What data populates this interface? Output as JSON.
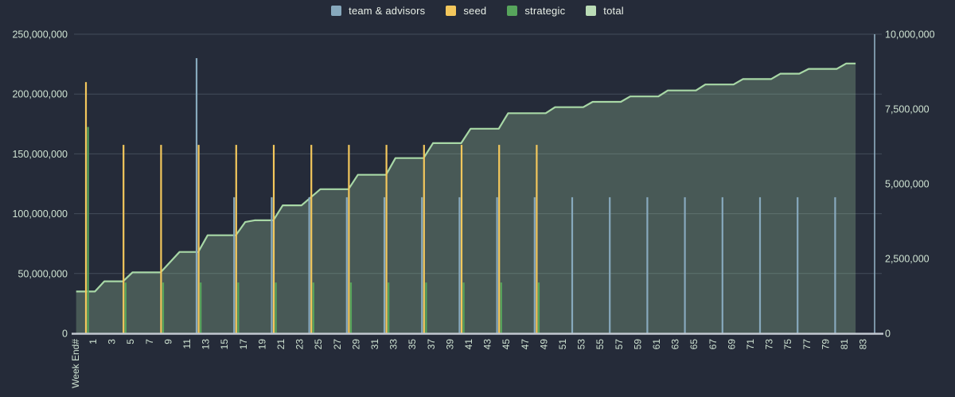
{
  "legend": {
    "items": [
      {
        "label": "team & advisors",
        "color": "#87a9bd"
      },
      {
        "label": "seed",
        "color": "#f3c75c"
      },
      {
        "label": "strategic",
        "color": "#57a55c"
      },
      {
        "label": "total",
        "color": "#badcb6"
      }
    ]
  },
  "colors": {
    "background": "#252b39",
    "gridline": "#444d5a",
    "baseline": "#c2c8d0",
    "right_axis_line": "#8fafc2",
    "axis_text": "#cfe3d2",
    "total_line": "#a8d8a6",
    "total_fill": "rgba(168,216,166,0.27)"
  },
  "chart_data": {
    "type": "combo",
    "x_axis": {
      "title": "Week End#",
      "tick_labels": [
        1,
        3,
        5,
        7,
        9,
        11,
        13,
        15,
        17,
        19,
        21,
        23,
        25,
        27,
        29,
        31,
        33,
        35,
        37,
        39,
        41,
        43,
        45,
        47,
        49,
        51,
        53,
        55,
        57,
        59,
        61,
        63,
        65,
        67,
        69,
        71,
        73,
        75,
        77,
        79,
        81,
        83
      ],
      "min_week": 0,
      "max_week": 83
    },
    "left_axis": {
      "max": 250000000,
      "tick_labels": [
        "250,000,000",
        "200,000,000",
        "150,000,000",
        "100,000,000",
        "50,000,000",
        "0"
      ]
    },
    "right_axis": {
      "max": 10000000,
      "tick_labels": [
        "10,000,000",
        "7,500,000",
        "5,000,000",
        "2,500,000",
        "0"
      ]
    },
    "series": [
      {
        "name": "team & advisors",
        "type": "bar",
        "axis": "right",
        "color": "#87a9bd",
        "weeks": [
          13,
          17,
          21,
          25,
          29,
          33,
          37,
          41,
          45,
          49,
          53,
          57,
          61,
          65,
          69,
          73,
          77,
          81
        ],
        "values": [
          9200000,
          4550000,
          4550000,
          4550000,
          4550000,
          4550000,
          4550000,
          4550000,
          4550000,
          4550000,
          4550000,
          4550000,
          4550000,
          4550000,
          4550000,
          4550000,
          4550000,
          4550000
        ]
      },
      {
        "name": "seed",
        "type": "bar",
        "axis": "right",
        "color": "#f3c75c",
        "weeks": [
          1,
          5,
          9,
          13,
          17,
          21,
          25,
          29,
          33,
          37,
          41,
          45,
          49
        ],
        "values": [
          8400000,
          6300000,
          6300000,
          6300000,
          6300000,
          6300000,
          6300000,
          6300000,
          6300000,
          6300000,
          6300000,
          6300000,
          6300000
        ]
      },
      {
        "name": "strategic",
        "type": "bar",
        "axis": "right",
        "color": "#57a55c",
        "weeks": [
          1,
          5,
          9,
          13,
          17,
          21,
          25,
          29,
          33,
          37,
          41,
          45,
          49
        ],
        "values": [
          6900000,
          1700000,
          1700000,
          1700000,
          1700000,
          1700000,
          1700000,
          1700000,
          1700000,
          1700000,
          1700000,
          1700000,
          1700000
        ]
      },
      {
        "name": "total",
        "type": "area",
        "axis": "left",
        "line_color": "#a8d8a6",
        "fill_color": "rgba(168,216,166,0.27)",
        "start_week": 0,
        "values": [
          35000000,
          35000000,
          35000000,
          43500000,
          43500000,
          43500000,
          51000000,
          51000000,
          51000000,
          51000000,
          59500000,
          68000000,
          68000000,
          68000000,
          82000000,
          82000000,
          82000000,
          82000000,
          93000000,
          94500000,
          94500000,
          94500000,
          107000000,
          107000000,
          107000000,
          113750000,
          120500000,
          120500000,
          120500000,
          120500000,
          132500000,
          132500000,
          132500000,
          132500000,
          146500000,
          146500000,
          146500000,
          146500000,
          159000000,
          159000000,
          159000000,
          159000000,
          171000000,
          171000000,
          171000000,
          171000000,
          184000000,
          184000000,
          184000000,
          184000000,
          184000000,
          189000000,
          189000000,
          189000000,
          189000000,
          193500000,
          193500000,
          193500000,
          193500000,
          198000000,
          198000000,
          198000000,
          198000000,
          203000000,
          203000000,
          203000000,
          203000000,
          208000000,
          208000000,
          208000000,
          208000000,
          212500000,
          212500000,
          212500000,
          212500000,
          217000000,
          217000000,
          217000000,
          221000000,
          221000000,
          221000000,
          221000000,
          225500000,
          225500000
        ]
      }
    ]
  }
}
